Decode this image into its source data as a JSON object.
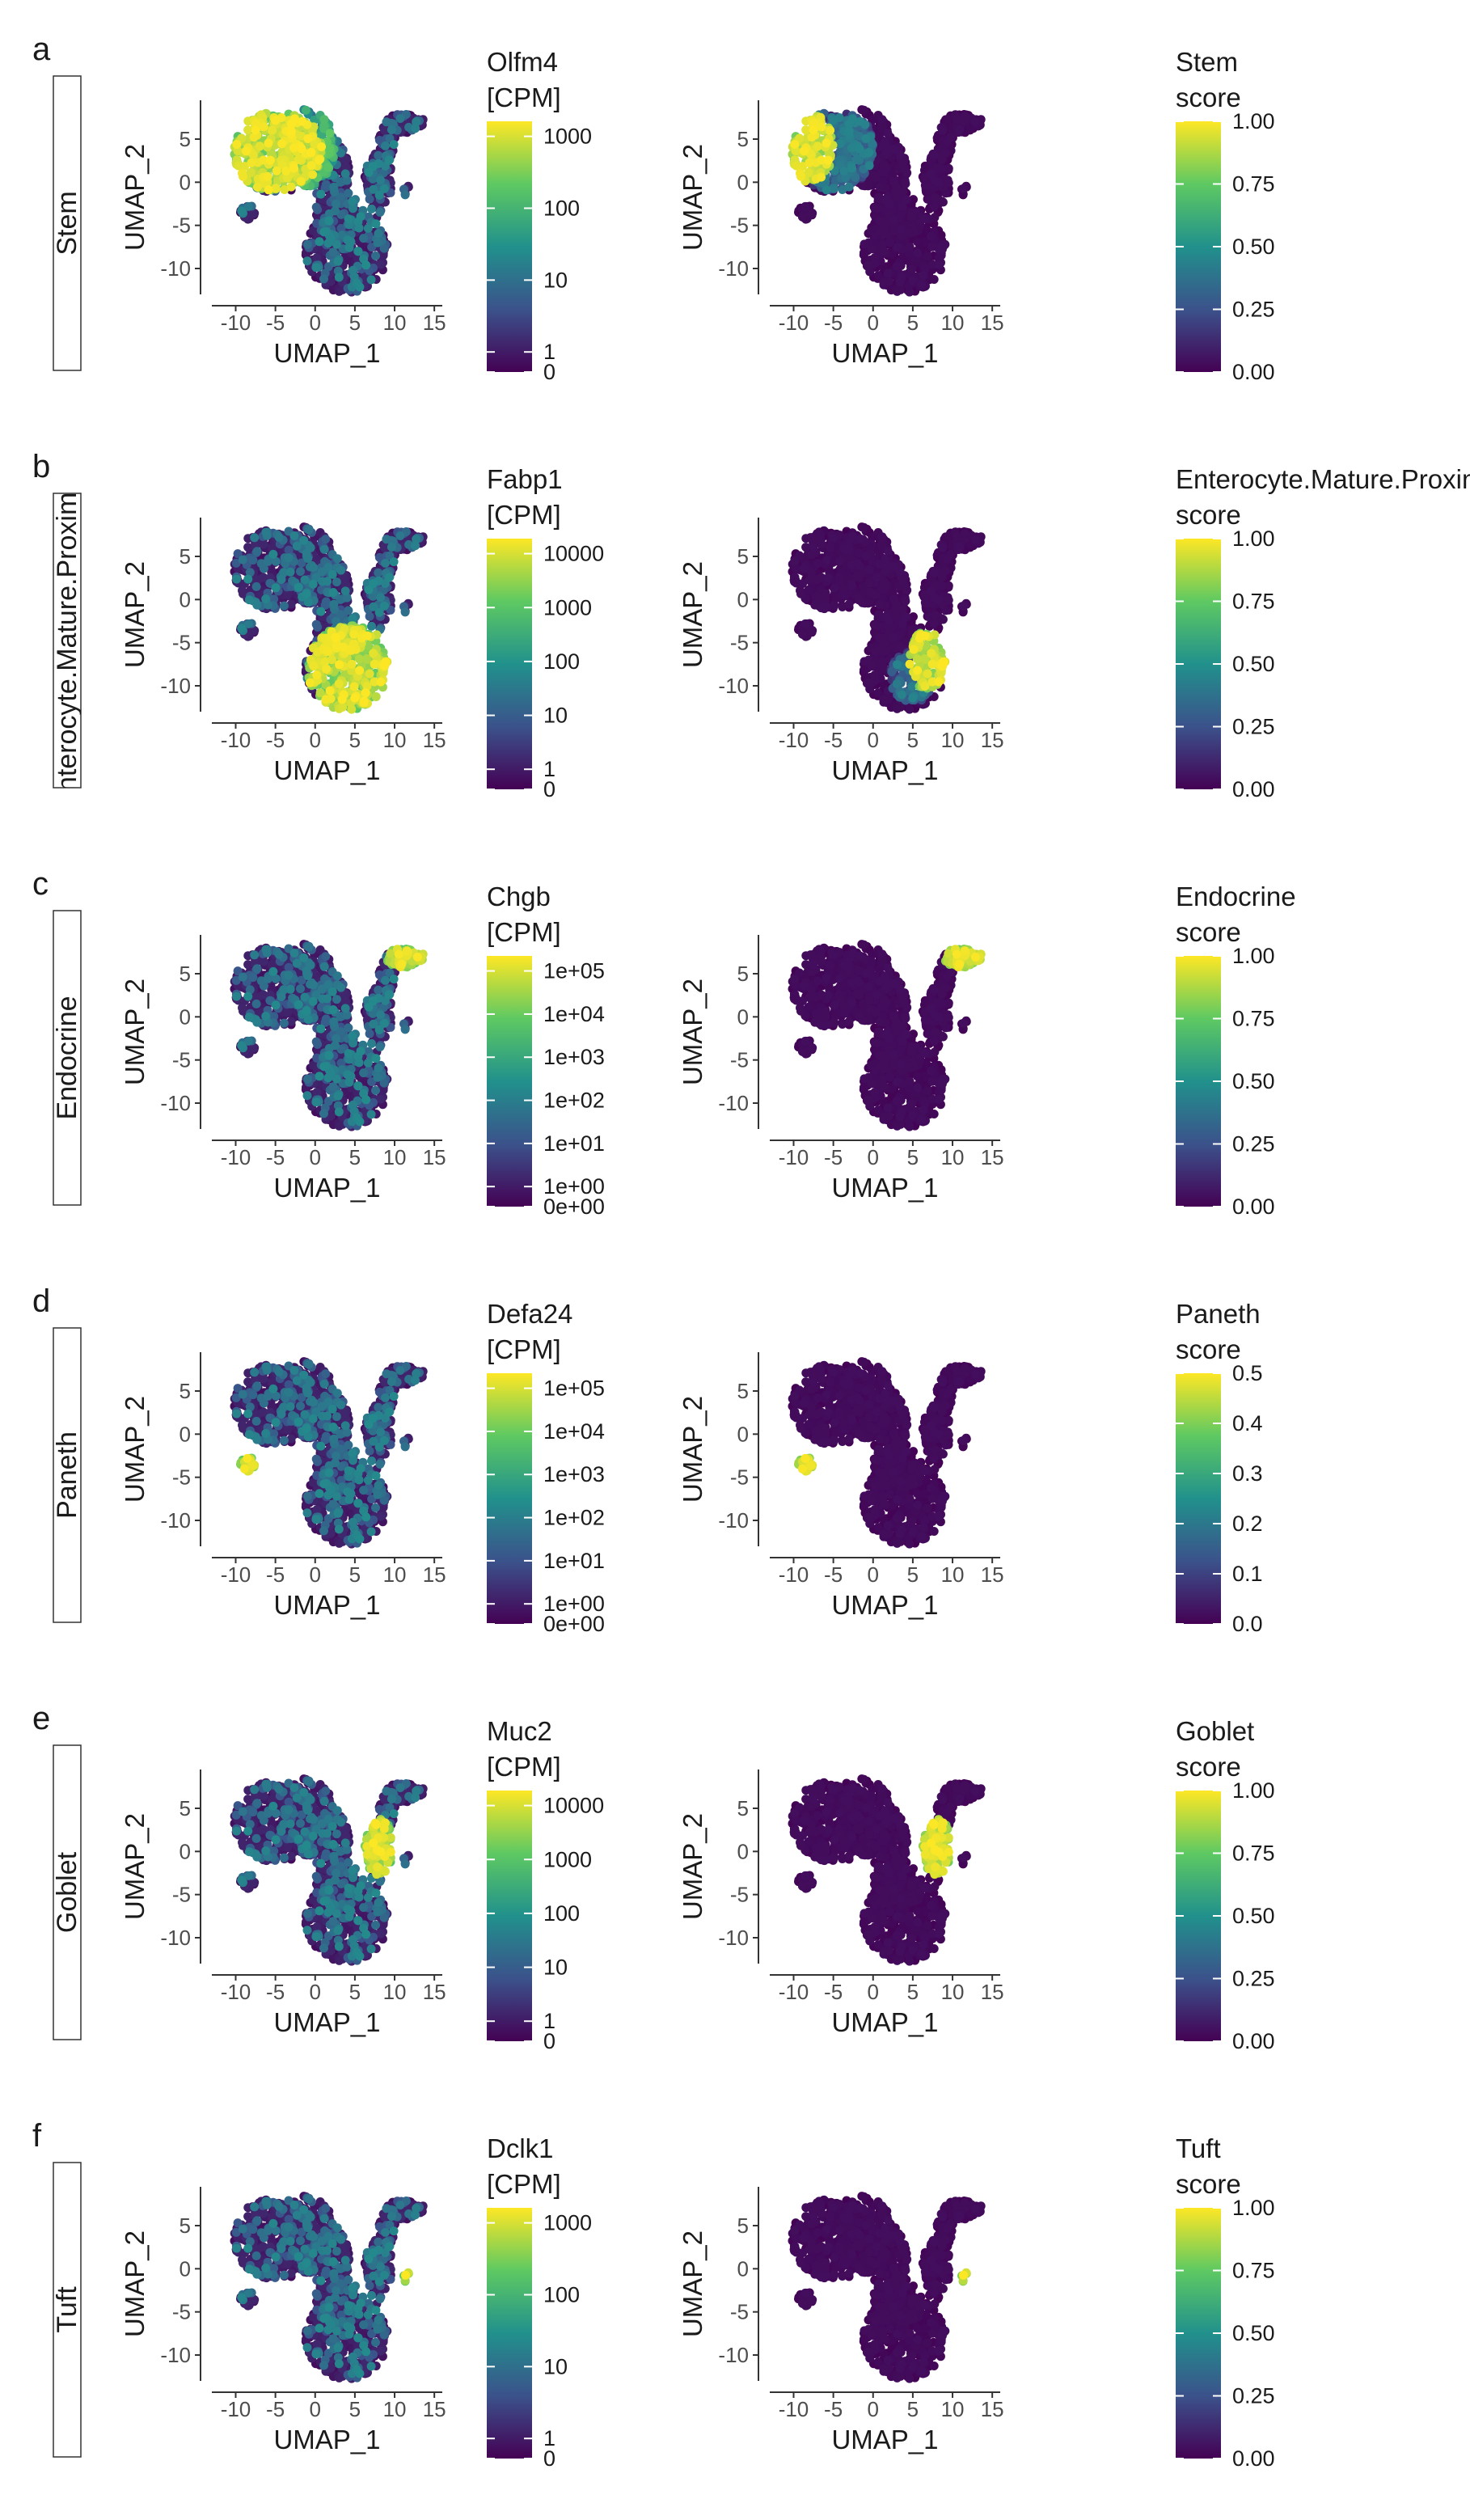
{
  "palette": {
    "viridis": [
      "#440154",
      "#3b528b",
      "#21918c",
      "#5ec962",
      "#fde725"
    ],
    "axis_color": "#333333",
    "tick_text_color": "#4d4d4d"
  },
  "chart_data": [
    {
      "type": "scatter",
      "panel": "a",
      "row_label": "Stem",
      "x_label": "UMAP_1",
      "y_label": "UMAP_2",
      "x_ticks": [
        -10,
        -5,
        0,
        5,
        10,
        15
      ],
      "y_ticks": [
        5,
        0,
        -5,
        -10
      ],
      "x_range": [
        -13,
        16
      ],
      "y_range": [
        -13,
        9.5
      ],
      "left": {
        "gene": "Olfm4",
        "legend_title": [
          "Olfm4",
          "[CPM]"
        ],
        "scale": "log",
        "legend_ticks": [
          "1000",
          "100",
          "10",
          "1",
          "0"
        ],
        "high_region": "stem-top-left"
      },
      "right": {
        "legend_title": [
          "Stem",
          "score"
        ],
        "scale": "linear",
        "legend_ticks": [
          "1.00",
          "0.75",
          "0.50",
          "0.25",
          "0.00"
        ],
        "high_region": "stem-far-left"
      }
    },
    {
      "type": "scatter",
      "panel": "b",
      "row_label": "Enterocyte.Mature.Proximal",
      "x_label": "UMAP_1",
      "y_label": "UMAP_2",
      "x_ticks": [
        -10,
        -5,
        0,
        5,
        10,
        15
      ],
      "y_ticks": [
        5,
        0,
        -5,
        -10
      ],
      "x_range": [
        -13,
        16
      ],
      "y_range": [
        -13,
        9.5
      ],
      "left": {
        "gene": "Fabp1",
        "legend_title": [
          "Fabp1",
          "[CPM]"
        ],
        "scale": "log",
        "legend_ticks": [
          "10000",
          "1000",
          "100",
          "10",
          "1",
          "0"
        ],
        "high_region": "bottom-lobe"
      },
      "right": {
        "legend_title": [
          "Enterocyte.Mature.Proximal",
          "score"
        ],
        "scale": "linear",
        "legend_ticks": [
          "1.00",
          "0.75",
          "0.50",
          "0.25",
          "0.00"
        ],
        "high_region": "bottom-right"
      }
    },
    {
      "type": "scatter",
      "panel": "c",
      "row_label": "Endocrine",
      "x_label": "UMAP_1",
      "y_label": "UMAP_2",
      "x_ticks": [
        -10,
        -5,
        0,
        5,
        10,
        15
      ],
      "y_ticks": [
        5,
        0,
        -5,
        -10
      ],
      "x_range": [
        -13,
        16
      ],
      "y_range": [
        -13,
        9.5
      ],
      "left": {
        "gene": "Chgb",
        "legend_title": [
          "Chgb",
          "[CPM]"
        ],
        "scale": "log",
        "legend_ticks": [
          "1e+05",
          "1e+04",
          "1e+03",
          "1e+02",
          "1e+01",
          "1e+00",
          "0e+00"
        ],
        "high_region": "top-right-arm"
      },
      "right": {
        "legend_title": [
          "Endocrine",
          "score"
        ],
        "scale": "linear",
        "legend_ticks": [
          "1.00",
          "0.75",
          "0.50",
          "0.25",
          "0.00"
        ],
        "high_region": "top-right-arm"
      }
    },
    {
      "type": "scatter",
      "panel": "d",
      "row_label": "Paneth",
      "x_label": "UMAP_1",
      "y_label": "UMAP_2",
      "x_ticks": [
        -10,
        -5,
        0,
        5,
        10,
        15
      ],
      "y_ticks": [
        5,
        0,
        -5,
        -10
      ],
      "x_range": [
        -13,
        16
      ],
      "y_range": [
        -13,
        9.5
      ],
      "left": {
        "gene": "Defa24",
        "legend_title": [
          "Defa24",
          "[CPM]"
        ],
        "scale": "log",
        "legend_ticks": [
          "1e+05",
          "1e+04",
          "1e+03",
          "1e+02",
          "1e+01",
          "1e+00",
          "0e+00"
        ],
        "high_region": "left-island"
      },
      "right": {
        "legend_title": [
          "Paneth",
          "score"
        ],
        "scale": "linear",
        "legend_ticks": [
          "0.5",
          "0.4",
          "0.3",
          "0.2",
          "0.1",
          "0.0"
        ],
        "high_region": "left-island"
      }
    },
    {
      "type": "scatter",
      "panel": "e",
      "row_label": "Goblet",
      "x_label": "UMAP_1",
      "y_label": "UMAP_2",
      "x_ticks": [
        -10,
        -5,
        0,
        5,
        10,
        15
      ],
      "y_ticks": [
        5,
        0,
        -5,
        -10
      ],
      "x_range": [
        -13,
        16
      ],
      "y_range": [
        -13,
        9.5
      ],
      "left": {
        "gene": "Muc2",
        "legend_title": [
          "Muc2",
          "[CPM]"
        ],
        "scale": "log",
        "legend_ticks": [
          "10000",
          "1000",
          "100",
          "10",
          "1",
          "0"
        ],
        "high_region": "middle-right"
      },
      "right": {
        "legend_title": [
          "Goblet",
          "score"
        ],
        "scale": "linear",
        "legend_ticks": [
          "1.00",
          "0.75",
          "0.50",
          "0.25",
          "0.00"
        ],
        "high_region": "middle-right"
      }
    },
    {
      "type": "scatter",
      "panel": "f",
      "row_label": "Tuft",
      "x_label": "UMAP_1",
      "y_label": "UMAP_2",
      "x_ticks": [
        -10,
        -5,
        0,
        5,
        10,
        15
      ],
      "y_ticks": [
        5,
        0,
        -5,
        -10
      ],
      "x_range": [
        -13,
        16
      ],
      "y_range": [
        -13,
        9.5
      ],
      "left": {
        "gene": "Dclk1",
        "legend_title": [
          "Dclk1",
          "[CPM]"
        ],
        "scale": "log",
        "legend_ticks": [
          "1000",
          "100",
          "10",
          "1",
          "0"
        ],
        "high_region": "small-right-island"
      },
      "right": {
        "legend_title": [
          "Tuft",
          "score"
        ],
        "scale": "linear",
        "legend_ticks": [
          "1.00",
          "0.75",
          "0.50",
          "0.25",
          "0.00"
        ],
        "high_region": "small-right-island"
      }
    }
  ]
}
